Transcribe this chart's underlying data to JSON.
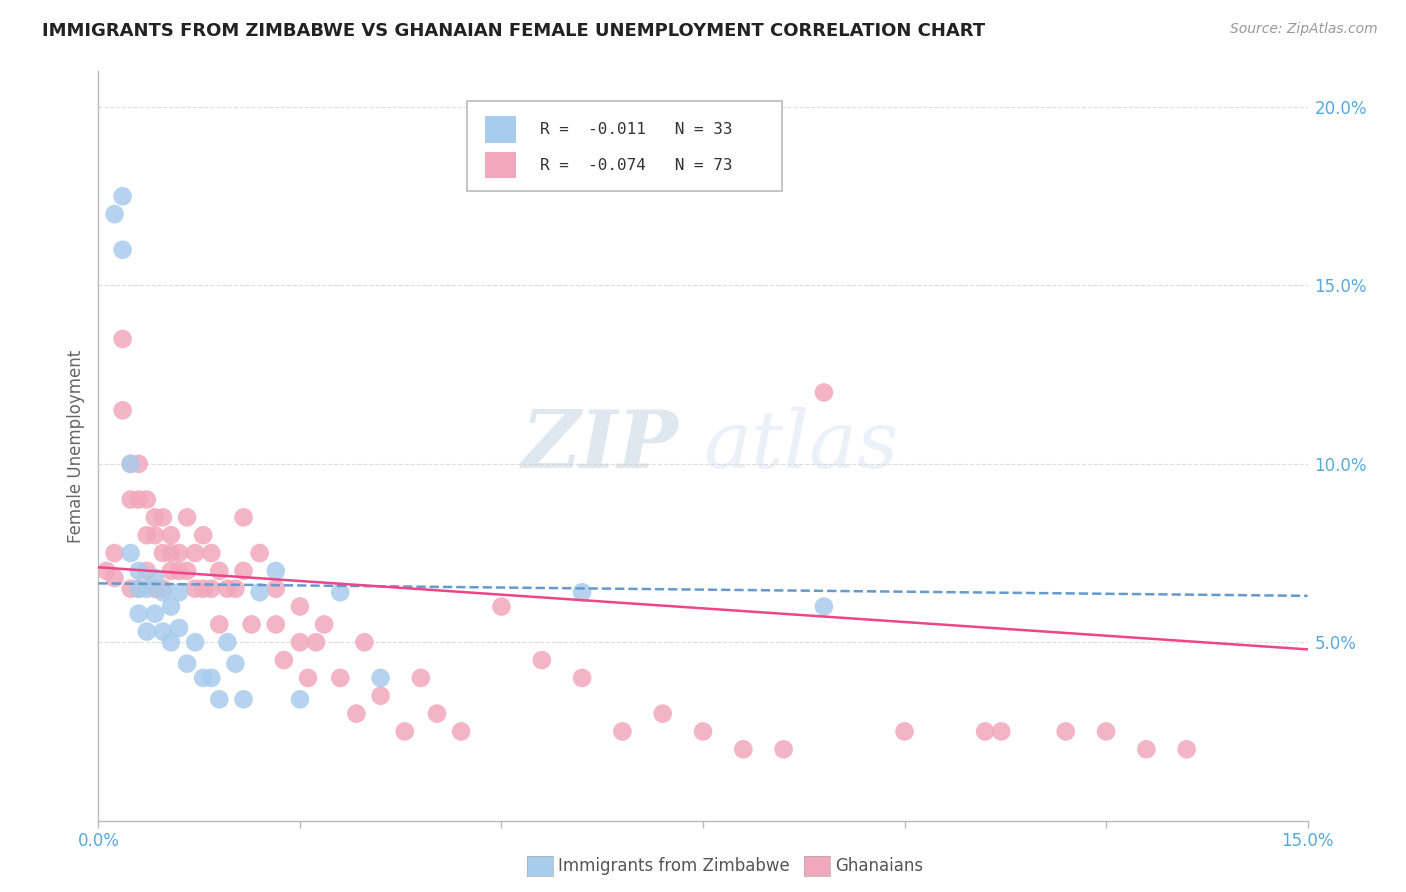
{
  "title": "IMMIGRANTS FROM ZIMBABWE VS GHANAIAN FEMALE UNEMPLOYMENT CORRELATION CHART",
  "source": "Source: ZipAtlas.com",
  "ylabel": "Female Unemployment",
  "xlim": [
    0.0,
    0.15
  ],
  "ylim": [
    0.0,
    0.21
  ],
  "xticks": [
    0.0,
    0.025,
    0.05,
    0.075,
    0.1,
    0.125,
    0.15
  ],
  "xtick_labels": [
    "0.0%",
    "",
    "",
    "",
    "",
    "",
    "15.0%"
  ],
  "yticks_right": [
    0.05,
    0.1,
    0.15,
    0.2
  ],
  "ytick_right_labels": [
    "5.0%",
    "10.0%",
    "15.0%",
    "20.0%"
  ],
  "legend_r1": "R =  -0.011",
  "legend_n1": "N = 33",
  "legend_r2": "R =  -0.074",
  "legend_n2": "N = 73",
  "color_blue": "#A8CCEC",
  "color_pink": "#F2A8BC",
  "color_line_blue": "#6699CC",
  "color_line_pink": "#EE4488",
  "color_axis": "#BBBBBB",
  "color_grid": "#DDDDDD",
  "color_title": "#222222",
  "color_right_labels": "#55AADD",
  "watermark_zip": "ZIP",
  "watermark_atlas": "atlas",
  "zimbabwe_x": [
    0.002,
    0.003,
    0.003,
    0.004,
    0.004,
    0.005,
    0.005,
    0.005,
    0.006,
    0.006,
    0.007,
    0.007,
    0.008,
    0.008,
    0.009,
    0.009,
    0.01,
    0.01,
    0.011,
    0.012,
    0.013,
    0.014,
    0.015,
    0.016,
    0.017,
    0.018,
    0.02,
    0.022,
    0.025,
    0.03,
    0.035,
    0.06,
    0.09
  ],
  "zimbabwe_y": [
    0.17,
    0.175,
    0.16,
    0.1,
    0.075,
    0.07,
    0.065,
    0.058,
    0.065,
    0.053,
    0.068,
    0.058,
    0.064,
    0.053,
    0.06,
    0.05,
    0.064,
    0.054,
    0.044,
    0.05,
    0.04,
    0.04,
    0.034,
    0.05,
    0.044,
    0.034,
    0.064,
    0.07,
    0.034,
    0.064,
    0.04,
    0.064,
    0.06
  ],
  "ghanaian_x": [
    0.001,
    0.002,
    0.002,
    0.003,
    0.003,
    0.004,
    0.004,
    0.004,
    0.005,
    0.005,
    0.005,
    0.006,
    0.006,
    0.006,
    0.007,
    0.007,
    0.007,
    0.008,
    0.008,
    0.008,
    0.009,
    0.009,
    0.009,
    0.01,
    0.01,
    0.011,
    0.011,
    0.012,
    0.012,
    0.013,
    0.013,
    0.014,
    0.014,
    0.015,
    0.015,
    0.016,
    0.017,
    0.018,
    0.018,
    0.019,
    0.02,
    0.022,
    0.022,
    0.023,
    0.025,
    0.025,
    0.026,
    0.027,
    0.028,
    0.03,
    0.032,
    0.033,
    0.035,
    0.038,
    0.04,
    0.042,
    0.045,
    0.05,
    0.055,
    0.06,
    0.065,
    0.07,
    0.075,
    0.08,
    0.085,
    0.09,
    0.1,
    0.11,
    0.112,
    0.12,
    0.125,
    0.13,
    0.135
  ],
  "ghanaian_y": [
    0.07,
    0.075,
    0.068,
    0.135,
    0.115,
    0.1,
    0.09,
    0.065,
    0.1,
    0.09,
    0.065,
    0.09,
    0.08,
    0.07,
    0.085,
    0.08,
    0.065,
    0.085,
    0.075,
    0.065,
    0.08,
    0.075,
    0.07,
    0.075,
    0.07,
    0.085,
    0.07,
    0.075,
    0.065,
    0.08,
    0.065,
    0.075,
    0.065,
    0.07,
    0.055,
    0.065,
    0.065,
    0.085,
    0.07,
    0.055,
    0.075,
    0.065,
    0.055,
    0.045,
    0.05,
    0.06,
    0.04,
    0.05,
    0.055,
    0.04,
    0.03,
    0.05,
    0.035,
    0.025,
    0.04,
    0.03,
    0.025,
    0.06,
    0.045,
    0.04,
    0.025,
    0.03,
    0.025,
    0.02,
    0.02,
    0.12,
    0.025,
    0.025,
    0.025,
    0.025,
    0.025,
    0.02,
    0.02
  ]
}
